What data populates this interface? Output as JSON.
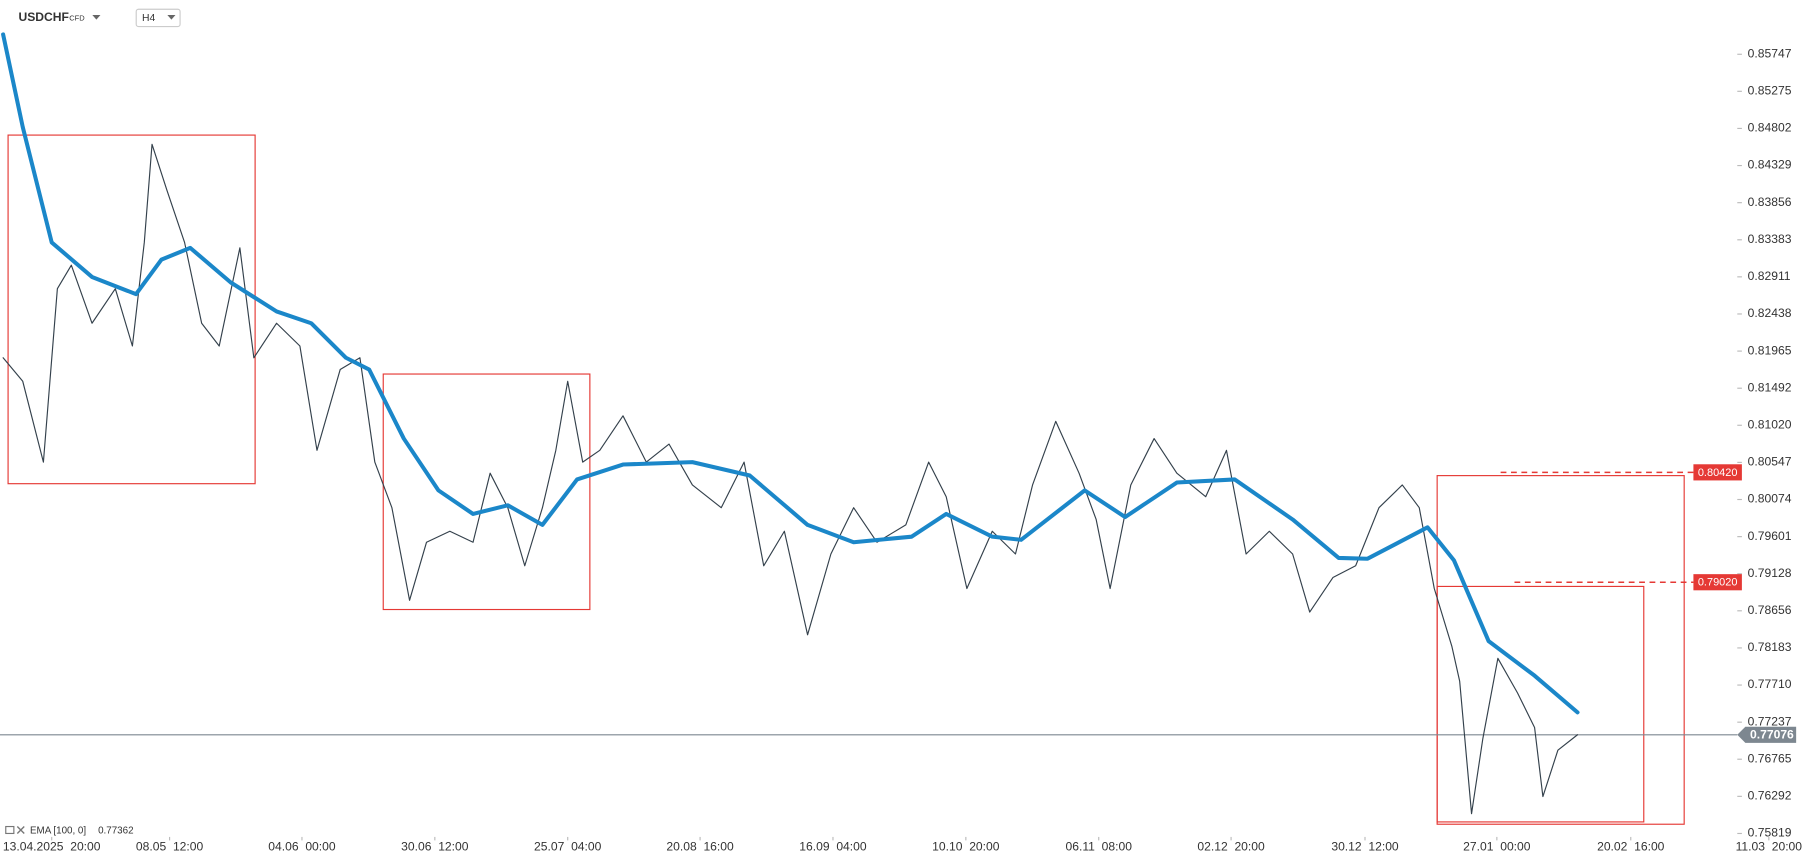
{
  "chart_data": {
    "type": "line",
    "instrument_type": "CFD",
    "timeframe": "H4",
    "xlim": [
      -10,
      326
    ],
    "ylim": [
      0.75775,
      0.86438
    ],
    "xticks": [
      {
        "value": 0,
        "label": "13.04.2025  20:00"
      },
      {
        "value": 22.8,
        "label": "08.05  12:00"
      },
      {
        "value": 48.4,
        "label": "04.06  00:00"
      },
      {
        "value": 74.1,
        "label": "30.06  12:00"
      },
      {
        "value": 99.8,
        "label": "25.07  04:00"
      },
      {
        "value": 125.4,
        "label": "20.08  16:00"
      },
      {
        "value": 151.1,
        "label": "16.09  04:00"
      },
      {
        "value": 176.8,
        "label": "10.10  20:00"
      },
      {
        "value": 202.5,
        "label": "06.11  08:00"
      },
      {
        "value": 228.1,
        "label": "02.12  20:00"
      },
      {
        "value": 254.0,
        "label": "30.12  12:00"
      },
      {
        "value": 279.5,
        "label": "27.01  00:00"
      },
      {
        "value": 305.4,
        "label": "20.02  16:00"
      },
      {
        "value": 332.1,
        "label": "11.03  20:00"
      }
    ],
    "yticks": [
      0.85747,
      0.85275,
      0.84802,
      0.84329,
      0.83856,
      0.83383,
      0.82911,
      0.82438,
      0.81965,
      0.81492,
      {
        "value": 0.8102,
        "label": "0.81020"
      },
      0.80547,
      0.80074,
      0.79601,
      0.79128,
      0.78656,
      0.78183,
      {
        "value": 0.7771,
        "label": "0.77710"
      },
      0.77237,
      0.76765,
      0.76292,
      0.75819
    ],
    "current_price": 0.77076,
    "current_price_color": "#7d8790",
    "price_levels": [
      {
        "value": 0.8042,
        "label": "0.80420",
        "color": "#e53935"
      },
      {
        "value": 0.7902,
        "label": "0.79020",
        "color": "#e53935"
      }
    ],
    "series": [
      {
        "name": "USDCHF",
        "color": "#34414c",
        "width": 1,
        "x": [
          -9.4,
          -5.6,
          -1.6,
          1.1,
          3.8,
          7.8,
          12.3,
          15.6,
          17.9,
          19.4,
          22.3,
          25.7,
          29.0,
          32.4,
          36.4,
          39.1,
          43.5,
          48.0,
          51.3,
          55.8,
          59.6,
          62.5,
          65.8,
          69.2,
          72.5,
          77.0,
          81.5,
          84.8,
          88.2,
          91.5,
          94.9,
          97.5,
          99.8,
          102.7,
          106.0,
          110.5,
          115.0,
          119.4,
          123.9,
          129.5,
          133.9,
          137.7,
          141.7,
          146.2,
          150.7,
          155.1,
          159.6,
          165.2,
          169.6,
          173.0,
          177.0,
          181.9,
          186.4,
          189.7,
          194.2,
          198.7,
          202.0,
          204.7,
          208.7,
          213.2,
          217.6,
          223.2,
          227.2,
          231.0,
          235.5,
          240.0,
          243.3,
          247.8,
          252.2,
          256.7,
          261.2,
          264.5,
          267.4,
          270.8,
          272.3,
          274.6,
          276.8,
          279.7,
          283.5,
          286.8,
          288.4,
          291.3,
          295.1
        ],
        "values": [
          0.8188,
          0.8158,
          0.8055,
          0.8276,
          0.8306,
          0.8232,
          0.8276,
          0.8203,
          0.8335,
          0.846,
          0.8401,
          0.8335,
          0.8232,
          0.8203,
          0.8328,
          0.8188,
          0.8232,
          0.8203,
          0.807,
          0.8173,
          0.8188,
          0.8055,
          0.7997,
          0.7879,
          0.7953,
          0.7967,
          0.7953,
          0.8041,
          0.7997,
          0.7923,
          0.7997,
          0.807,
          0.8158,
          0.8055,
          0.807,
          0.8114,
          0.8055,
          0.8078,
          0.8026,
          0.7997,
          0.8055,
          0.7923,
          0.7967,
          0.7835,
          0.7938,
          0.7997,
          0.7953,
          0.7975,
          0.8055,
          0.8011,
          0.7894,
          0.7967,
          0.7938,
          0.8026,
          0.8107,
          0.8041,
          0.7982,
          0.7894,
          0.8026,
          0.8085,
          0.8041,
          0.8011,
          0.807,
          0.7938,
          0.7967,
          0.7938,
          0.7864,
          0.7908,
          0.7923,
          0.7997,
          0.8026,
          0.7997,
          0.7894,
          0.782,
          0.7776,
          0.7607,
          0.7703,
          0.7805,
          0.7761,
          0.7717,
          0.7629,
          0.7688,
          0.77076
        ]
      },
      {
        "name": "EMA [100, 0]",
        "color": "#1b87c9",
        "width": 3.5,
        "last_value": 0.77362,
        "x": [
          -9.4,
          -5.6,
          0,
          7.8,
          16.3,
          21.2,
          26.8,
          34.6,
          43.5,
          50.2,
          56.9,
          61.4,
          68.1,
          74.8,
          81.5,
          88.2,
          94.9,
          101.6,
          110.5,
          123.9,
          135.0,
          146.2,
          155.1,
          166.3,
          173.0,
          181.9,
          187.5,
          199.8,
          207.6,
          217.6,
          228.8,
          240.0,
          248.9,
          254.5,
          266.1,
          271.2,
          277.9,
          286.8,
          295.1
        ],
        "values": [
          0.86,
          0.8482,
          0.8335,
          0.8291,
          0.8269,
          0.8313,
          0.8328,
          0.8284,
          0.8247,
          0.8232,
          0.8188,
          0.8173,
          0.8085,
          0.8019,
          0.7989,
          0.8,
          0.7975,
          0.8033,
          0.8052,
          0.8055,
          0.8038,
          0.7975,
          0.7953,
          0.796,
          0.7989,
          0.796,
          0.7956,
          0.8019,
          0.7985,
          0.8029,
          0.8033,
          0.7982,
          0.7933,
          0.7932,
          0.7972,
          0.793,
          0.7827,
          0.7783,
          0.77362
        ]
      }
    ]
  }
}
